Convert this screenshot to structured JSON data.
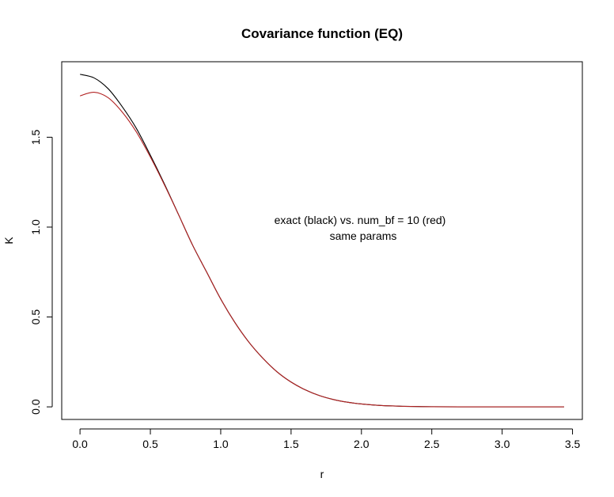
{
  "chart_data": {
    "type": "line",
    "title": "Covariance function (EQ)",
    "xlabel": "r",
    "ylabel": "K",
    "xlim": [
      -0.13,
      3.57
    ],
    "ylim": [
      -0.07,
      1.92
    ],
    "x_ticks": [
      0.0,
      0.5,
      1.0,
      1.5,
      2.0,
      2.5,
      3.0,
      3.5
    ],
    "x_tick_labels": [
      "0.0",
      "0.5",
      "1.0",
      "1.5",
      "2.0",
      "2.5",
      "3.0",
      "3.5"
    ],
    "y_ticks": [
      0.0,
      0.5,
      1.0,
      1.5
    ],
    "y_tick_labels": [
      "0.0",
      "0.5",
      "1.0",
      "1.5"
    ],
    "grid": false,
    "legend": "none",
    "annotation": [
      "exact (black) vs. num_bf = 10 (red)",
      "same params"
    ],
    "series": [
      {
        "color": "#000000",
        "x": [
          0.0,
          0.1,
          0.2,
          0.3,
          0.4,
          0.5,
          0.6,
          0.7,
          0.8,
          0.9,
          1.0,
          1.1,
          1.2,
          1.3,
          1.4,
          1.5,
          1.6,
          1.7,
          1.8,
          1.9,
          2.0,
          2.1,
          2.2,
          2.3,
          2.4,
          2.5,
          2.7,
          3.0,
          3.2,
          3.44
        ],
        "values": [
          1.85,
          1.83,
          1.77,
          1.67,
          1.55,
          1.4,
          1.24,
          1.07,
          0.9,
          0.75,
          0.6,
          0.47,
          0.36,
          0.27,
          0.195,
          0.138,
          0.095,
          0.063,
          0.041,
          0.026,
          0.016,
          0.0095,
          0.0055,
          0.003,
          0.0017,
          0.0009,
          0.0002,
          0.0,
          0.0,
          0.0
        ]
      },
      {
        "color": "#b22222",
        "x": [
          0.0,
          0.1,
          0.2,
          0.3,
          0.4,
          0.5,
          0.6,
          0.7,
          0.8,
          0.9,
          1.0,
          1.1,
          1.2,
          1.3,
          1.4,
          1.5,
          1.6,
          1.7,
          1.8,
          1.9,
          2.0,
          2.1,
          2.2,
          2.3,
          2.4,
          2.5,
          2.7,
          3.0,
          3.2,
          3.44
        ],
        "values": [
          1.73,
          1.75,
          1.72,
          1.64,
          1.53,
          1.39,
          1.235,
          1.07,
          0.9,
          0.75,
          0.6,
          0.47,
          0.36,
          0.27,
          0.195,
          0.138,
          0.095,
          0.063,
          0.041,
          0.026,
          0.016,
          0.0095,
          0.0055,
          0.003,
          0.0017,
          0.0009,
          0.0002,
          0.0,
          0.0,
          0.0
        ]
      }
    ]
  }
}
